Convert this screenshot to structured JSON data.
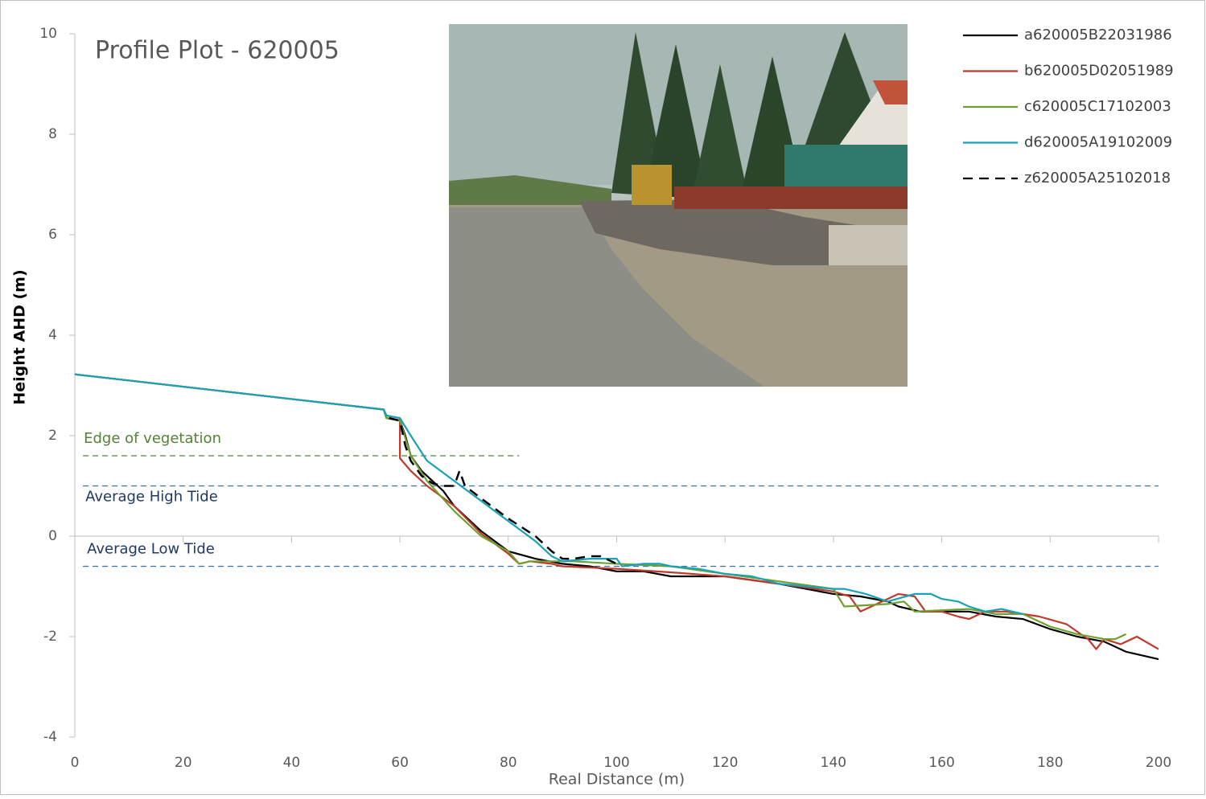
{
  "chart_data": {
    "type": "line",
    "title": "Profile Plot - 620005",
    "x_label": "Real Distance (m)",
    "y_label": "Height AHD (m)",
    "xlim": [
      0,
      200
    ],
    "ylim": [
      -4,
      10
    ],
    "xticks": [
      0,
      20,
      40,
      60,
      80,
      100,
      120,
      140,
      160,
      180,
      200
    ],
    "yticks": [
      -4,
      -2,
      0,
      2,
      4,
      6,
      8,
      10
    ],
    "legend": "top-right",
    "reference_lines": [
      {
        "label": "Edge of vegetation",
        "value": 1.6,
        "color": "#548235",
        "x": [
          1.5,
          82
        ]
      },
      {
        "label": "Average High Tide",
        "value": 1.0,
        "color": "#2e75b6",
        "x": [
          1.5,
          200
        ]
      },
      {
        "label": "Average Low Tide",
        "value": -0.6,
        "color": "#2e75b6",
        "x": [
          1.5,
          200
        ]
      }
    ],
    "series": [
      {
        "name": "a620005B22031986",
        "color": "#000000",
        "line_style": "solid",
        "x": [
          0,
          57,
          57.5,
          60,
          61,
          62,
          64,
          66,
          68,
          70,
          75,
          80,
          85,
          90,
          95,
          100,
          105,
          110,
          120,
          130,
          140,
          145,
          150,
          152,
          156,
          165,
          170,
          175,
          180,
          185,
          190,
          194,
          200
        ],
        "values": [
          3.22,
          2.52,
          2.35,
          2.3,
          2.0,
          1.6,
          1.3,
          1.1,
          0.9,
          0.6,
          0.1,
          -0.3,
          -0.45,
          -0.55,
          -0.6,
          -0.7,
          -0.7,
          -0.8,
          -0.8,
          -0.95,
          -1.15,
          -1.2,
          -1.3,
          -1.4,
          -1.5,
          -1.5,
          -1.6,
          -1.65,
          -1.85,
          -2.0,
          -2.1,
          -2.3,
          -2.45
        ]
      },
      {
        "name": "b620005D02051989",
        "color": "#c0392b",
        "line_style": "solid",
        "x": [
          0,
          57,
          57.5,
          60,
          60,
          62,
          65,
          70,
          75,
          80,
          82,
          84,
          88,
          90,
          100,
          110,
          120,
          130,
          140,
          143,
          145,
          148,
          152,
          155,
          157,
          160,
          163,
          165,
          168,
          172,
          178,
          183,
          187,
          188.5,
          190,
          193,
          196,
          200
        ],
        "values": [
          3.22,
          2.52,
          2.4,
          2.35,
          1.55,
          1.3,
          1.0,
          0.6,
          0.05,
          -0.35,
          -0.55,
          -0.5,
          -0.55,
          -0.6,
          -0.65,
          -0.72,
          -0.8,
          -0.95,
          -1.1,
          -1.2,
          -1.5,
          -1.35,
          -1.15,
          -1.2,
          -1.5,
          -1.5,
          -1.6,
          -1.65,
          -1.5,
          -1.5,
          -1.6,
          -1.75,
          -2.05,
          -2.25,
          -2.05,
          -2.15,
          -2.0,
          -2.25
        ]
      },
      {
        "name": "c620005C17102003",
        "color": "#70a030",
        "line_style": "solid",
        "x": [
          0,
          57,
          57.5,
          60,
          62,
          65,
          70,
          75,
          80,
          82,
          84,
          88,
          92,
          100,
          110,
          120,
          130,
          140,
          142,
          150,
          153,
          155,
          165,
          170,
          175,
          180,
          185,
          190,
          192,
          194
        ],
        "values": [
          3.22,
          2.52,
          2.35,
          2.3,
          1.6,
          1.1,
          0.5,
          0.0,
          -0.3,
          -0.55,
          -0.5,
          -0.5,
          -0.5,
          -0.55,
          -0.6,
          -0.75,
          -0.9,
          -1.05,
          -1.4,
          -1.35,
          -1.3,
          -1.5,
          -1.45,
          -1.55,
          -1.55,
          -1.8,
          -1.95,
          -2.05,
          -2.05,
          -1.95
        ]
      },
      {
        "name": "d620005A19102009",
        "color": "#17a2b8",
        "line_style": "solid",
        "x": [
          0,
          57,
          57.5,
          60,
          62,
          65,
          70,
          75,
          80,
          85,
          88,
          90,
          95,
          100,
          101,
          105,
          108,
          110,
          115,
          120,
          125,
          130,
          140,
          142,
          146,
          150,
          155,
          158,
          160,
          163,
          165,
          168,
          171,
          175
        ],
        "values": [
          3.22,
          2.52,
          2.4,
          2.35,
          2.0,
          1.5,
          1.1,
          0.7,
          0.3,
          -0.1,
          -0.4,
          -0.5,
          -0.45,
          -0.45,
          -0.6,
          -0.55,
          -0.55,
          -0.6,
          -0.65,
          -0.75,
          -0.8,
          -0.95,
          -1.05,
          -1.05,
          -1.15,
          -1.3,
          -1.15,
          -1.15,
          -1.25,
          -1.3,
          -1.4,
          -1.5,
          -1.45,
          -1.55
        ]
      },
      {
        "name": "z620005A25102018",
        "color": "#000000",
        "line_style": "dashed",
        "x": [
          58,
          60,
          61,
          62,
          64,
          66,
          68,
          70,
          71,
          72,
          75,
          80,
          85,
          88,
          90,
          92,
          95,
          97,
          100
        ],
        "values": [
          2.35,
          2.3,
          1.8,
          1.5,
          1.2,
          1.05,
          1.0,
          1.0,
          1.3,
          1.0,
          0.75,
          0.35,
          0.0,
          -0.3,
          -0.45,
          -0.45,
          -0.4,
          -0.4,
          -0.55
        ]
      }
    ]
  }
}
